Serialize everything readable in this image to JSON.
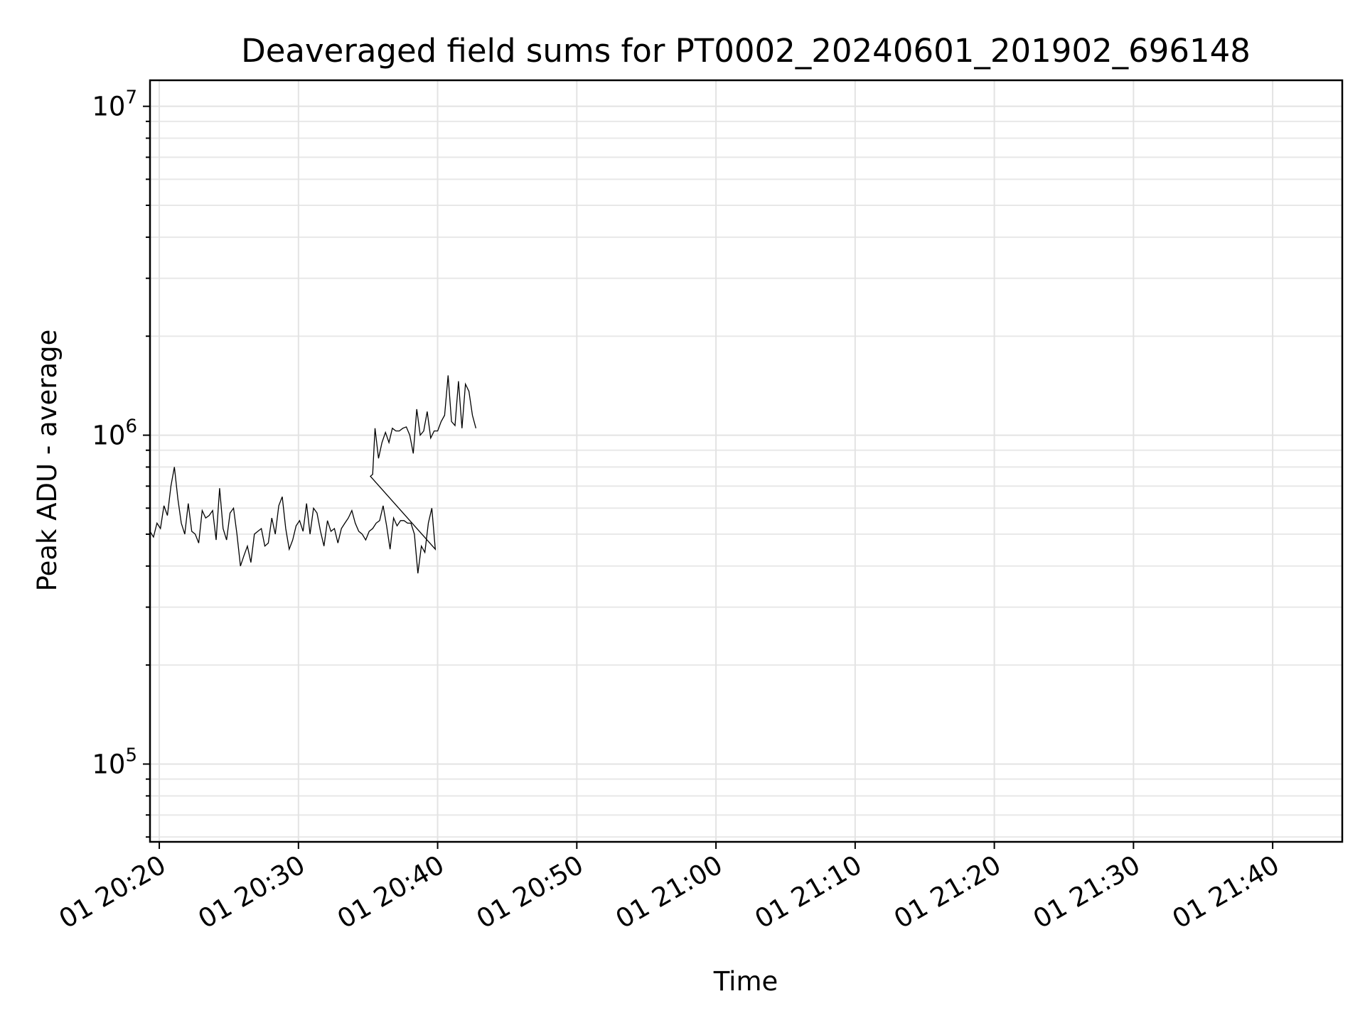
{
  "chart_data": {
    "type": "line",
    "title": "Deaveraged field sums for PT0002_20240601_201902_696148",
    "xlabel": "Time",
    "ylabel": "Peak ADU - average",
    "yscale": "log",
    "grid": true,
    "xlim": [
      "2024-06-01T20:19:20",
      "2024-06-01T21:45:00"
    ],
    "ylim": [
      58000,
      12000000
    ],
    "x_ticks": [
      {
        "value": "2024-06-01T20:20:00",
        "label": "01 20:20"
      },
      {
        "value": "2024-06-01T20:30:00",
        "label": "01 20:30"
      },
      {
        "value": "2024-06-01T20:40:00",
        "label": "01 20:40"
      },
      {
        "value": "2024-06-01T20:50:00",
        "label": "01 20:50"
      },
      {
        "value": "2024-06-01T21:00:00",
        "label": "01 21:00"
      },
      {
        "value": "2024-06-01T21:10:00",
        "label": "01 21:10"
      },
      {
        "value": "2024-06-01T21:20:00",
        "label": "01 21:20"
      },
      {
        "value": "2024-06-01T21:30:00",
        "label": "01 21:30"
      },
      {
        "value": "2024-06-01T21:40:00",
        "label": "01 21:40"
      }
    ],
    "y_ticks": [
      {
        "value": 100000,
        "base": "10",
        "exp": "5"
      },
      {
        "value": 1000000,
        "base": "10",
        "exp": "6"
      },
      {
        "value": 10000000,
        "base": "10",
        "exp": "7"
      }
    ],
    "series": [
      {
        "color": "#000000",
        "points": [
          [
            "2024-06-01T20:19:20",
            510000
          ],
          [
            "2024-06-01T20:19:35",
            490000
          ],
          [
            "2024-06-01T20:19:50",
            540000
          ],
          [
            "2024-06-01T20:20:05",
            520000
          ],
          [
            "2024-06-01T20:20:20",
            610000
          ],
          [
            "2024-06-01T20:20:35",
            570000
          ],
          [
            "2024-06-01T20:20:50",
            700000
          ],
          [
            "2024-06-01T20:21:05",
            800000
          ],
          [
            "2024-06-01T20:21:20",
            640000
          ],
          [
            "2024-06-01T20:21:35",
            540000
          ],
          [
            "2024-06-01T20:21:50",
            500000
          ],
          [
            "2024-06-01T20:22:05",
            620000
          ],
          [
            "2024-06-01T20:22:20",
            510000
          ],
          [
            "2024-06-01T20:22:35",
            500000
          ],
          [
            "2024-06-01T20:22:50",
            470000
          ],
          [
            "2024-06-01T20:23:05",
            590000
          ],
          [
            "2024-06-01T20:23:20",
            560000
          ],
          [
            "2024-06-01T20:23:35",
            570000
          ],
          [
            "2024-06-01T20:23:50",
            590000
          ],
          [
            "2024-06-01T20:24:05",
            480000
          ],
          [
            "2024-06-01T20:24:20",
            690000
          ],
          [
            "2024-06-01T20:24:35",
            520000
          ],
          [
            "2024-06-01T20:24:50",
            480000
          ],
          [
            "2024-06-01T20:25:05",
            580000
          ],
          [
            "2024-06-01T20:25:20",
            600000
          ],
          [
            "2024-06-01T20:25:35",
            500000
          ],
          [
            "2024-06-01T20:25:50",
            400000
          ],
          [
            "2024-06-01T20:26:05",
            430000
          ],
          [
            "2024-06-01T20:26:20",
            460000
          ],
          [
            "2024-06-01T20:26:35",
            410000
          ],
          [
            "2024-06-01T20:26:50",
            500000
          ],
          [
            "2024-06-01T20:27:05",
            510000
          ],
          [
            "2024-06-01T20:27:20",
            520000
          ],
          [
            "2024-06-01T20:27:35",
            460000
          ],
          [
            "2024-06-01T20:27:50",
            470000
          ],
          [
            "2024-06-01T20:28:05",
            560000
          ],
          [
            "2024-06-01T20:28:20",
            500000
          ],
          [
            "2024-06-01T20:28:35",
            610000
          ],
          [
            "2024-06-01T20:28:50",
            650000
          ],
          [
            "2024-06-01T20:29:05",
            520000
          ],
          [
            "2024-06-01T20:29:20",
            450000
          ],
          [
            "2024-06-01T20:29:35",
            480000
          ],
          [
            "2024-06-01T20:29:50",
            530000
          ],
          [
            "2024-06-01T20:30:05",
            550000
          ],
          [
            "2024-06-01T20:30:20",
            510000
          ],
          [
            "2024-06-01T20:30:35",
            620000
          ],
          [
            "2024-06-01T20:30:50",
            500000
          ],
          [
            "2024-06-01T20:31:05",
            600000
          ],
          [
            "2024-06-01T20:31:20",
            580000
          ],
          [
            "2024-06-01T20:31:35",
            510000
          ],
          [
            "2024-06-01T20:31:50",
            460000
          ],
          [
            "2024-06-01T20:32:05",
            550000
          ],
          [
            "2024-06-01T20:32:20",
            510000
          ],
          [
            "2024-06-01T20:32:35",
            520000
          ],
          [
            "2024-06-01T20:32:50",
            470000
          ],
          [
            "2024-06-01T20:33:05",
            520000
          ],
          [
            "2024-06-01T20:33:20",
            540000
          ],
          [
            "2024-06-01T20:33:35",
            560000
          ],
          [
            "2024-06-01T20:33:50",
            590000
          ],
          [
            "2024-06-01T20:34:05",
            540000
          ],
          [
            "2024-06-01T20:34:20",
            510000
          ],
          [
            "2024-06-01T20:34:35",
            500000
          ],
          [
            "2024-06-01T20:34:50",
            480000
          ],
          [
            "2024-06-01T20:35:05",
            510000
          ],
          [
            "2024-06-01T20:35:20",
            520000
          ],
          [
            "2024-06-01T20:35:35",
            540000
          ],
          [
            "2024-06-01T20:35:50",
            550000
          ],
          [
            "2024-06-01T20:36:05",
            610000
          ],
          [
            "2024-06-01T20:36:20",
            530000
          ],
          [
            "2024-06-01T20:36:35",
            450000
          ],
          [
            "2024-06-01T20:36:50",
            560000
          ],
          [
            "2024-06-01T20:37:05",
            530000
          ],
          [
            "2024-06-01T20:37:20",
            550000
          ],
          [
            "2024-06-01T20:37:35",
            550000
          ],
          [
            "2024-06-01T20:37:50",
            540000
          ],
          [
            "2024-06-01T20:38:05",
            540000
          ],
          [
            "2024-06-01T20:38:20",
            500000
          ],
          [
            "2024-06-01T20:38:35",
            380000
          ],
          [
            "2024-06-01T20:38:50",
            460000
          ],
          [
            "2024-06-01T20:39:05",
            440000
          ],
          [
            "2024-06-01T20:39:20",
            540000
          ],
          [
            "2024-06-01T20:39:35",
            600000
          ],
          [
            "2024-06-01T20:39:50",
            450000
          ],
          [
            "2024-06-01T20:35:10",
            750000
          ],
          [
            "2024-06-01T20:35:20",
            760000
          ],
          [
            "2024-06-01T20:35:30",
            1050000
          ],
          [
            "2024-06-01T20:35:45",
            850000
          ],
          [
            "2024-06-01T20:36:00",
            950000
          ],
          [
            "2024-06-01T20:36:15",
            1020000
          ],
          [
            "2024-06-01T20:36:30",
            950000
          ],
          [
            "2024-06-01T20:36:45",
            1050000
          ],
          [
            "2024-06-01T20:37:00",
            1030000
          ],
          [
            "2024-06-01T20:37:15",
            1030000
          ],
          [
            "2024-06-01T20:37:30",
            1050000
          ],
          [
            "2024-06-01T20:37:45",
            1060000
          ],
          [
            "2024-06-01T20:38:00",
            1000000
          ],
          [
            "2024-06-01T20:38:15",
            880000
          ],
          [
            "2024-06-01T20:38:30",
            1200000
          ],
          [
            "2024-06-01T20:38:45",
            1000000
          ],
          [
            "2024-06-01T20:39:00",
            1030000
          ],
          [
            "2024-06-01T20:39:15",
            1180000
          ],
          [
            "2024-06-01T20:39:30",
            980000
          ],
          [
            "2024-06-01T20:39:45",
            1030000
          ],
          [
            "2024-06-01T20:40:00",
            1030000
          ],
          [
            "2024-06-01T20:40:15",
            1100000
          ],
          [
            "2024-06-01T20:40:30",
            1150000
          ],
          [
            "2024-06-01T20:40:45",
            1520000
          ],
          [
            "2024-06-01T20:41:00",
            1100000
          ],
          [
            "2024-06-01T20:41:15",
            1070000
          ],
          [
            "2024-06-01T20:41:30",
            1460000
          ],
          [
            "2024-06-01T20:41:45",
            1050000
          ],
          [
            "2024-06-01T20:42:00",
            1430000
          ],
          [
            "2024-06-01T20:42:15",
            1360000
          ],
          [
            "2024-06-01T20:42:30",
            1150000
          ],
          [
            "2024-06-01T20:42:45",
            1050000
          ]
        ]
      }
    ]
  }
}
